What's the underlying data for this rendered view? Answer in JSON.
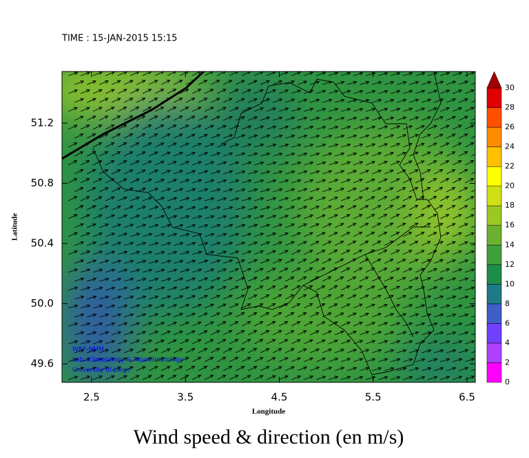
{
  "header": {
    "time": "TIME : 15-JAN-2015 15:15"
  },
  "map": {
    "xlabel": "Longitude",
    "ylabel": "Latitude",
    "xlim": [
      2.185,
      6.588
    ],
    "ylim": [
      49.477,
      51.543
    ],
    "xticks": [
      2.5,
      3.5,
      4.5,
      5.5,
      6.5
    ],
    "yticks": [
      49.6,
      {
        "value": 50,
        "label": "50.0"
      },
      50.4,
      50.8,
      51.2
    ],
    "credits": [
      "WRF-NMM",
      "Lab. Climatology & Topoclimatology",
      "University of Liege"
    ]
  },
  "colorbar": {
    "levels": [
      0,
      2,
      4,
      6,
      8,
      10,
      12,
      14,
      16,
      18,
      20,
      22,
      24,
      26,
      28,
      30
    ],
    "colors": [
      "#ff00ff",
      "#b040ff",
      "#7040ff",
      "#3e5ec8",
      "#1e7a86",
      "#1e8c4a",
      "#3fa03a",
      "#6cb030",
      "#9cc822",
      "#cfe014",
      "#ffff00",
      "#ffc000",
      "#ff8c00",
      "#ff5000",
      "#e00000"
    ],
    "extend_color": "#a00000"
  },
  "title": "Wind speed & direction (en m/s)"
}
